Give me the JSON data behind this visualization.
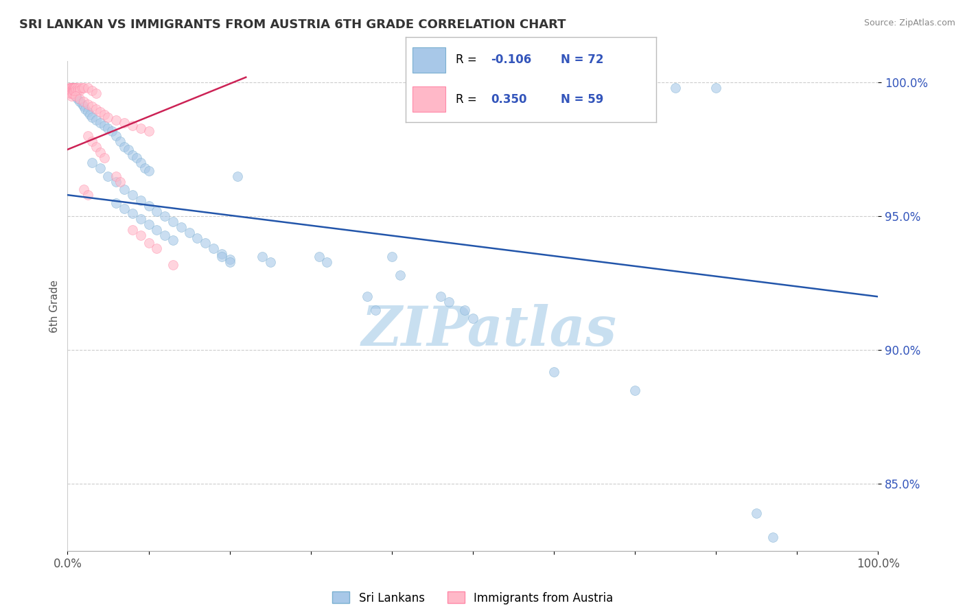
{
  "title": "SRI LANKAN VS IMMIGRANTS FROM AUSTRIA 6TH GRADE CORRELATION CHART",
  "source": "Source: ZipAtlas.com",
  "ylabel": "6th Grade",
  "watermark": "ZIPatlas",
  "blue_r": -0.106,
  "blue_n": 72,
  "pink_r": 0.35,
  "pink_n": 59,
  "xlim": [
    0.0,
    1.0
  ],
  "ylim": [
    0.825,
    1.008
  ],
  "yticks": [
    0.85,
    0.9,
    0.95,
    1.0
  ],
  "ytick_labels": [
    "85.0%",
    "90.0%",
    "95.0%",
    "100.0%"
  ],
  "blue_scatter": [
    [
      0.005,
      0.998
    ],
    [
      0.006,
      0.997
    ],
    [
      0.007,
      0.996
    ],
    [
      0.008,
      0.998
    ],
    [
      0.01,
      0.995
    ],
    [
      0.012,
      0.994
    ],
    [
      0.015,
      0.993
    ],
    [
      0.018,
      0.992
    ],
    [
      0.02,
      0.991
    ],
    [
      0.022,
      0.99
    ],
    [
      0.025,
      0.989
    ],
    [
      0.028,
      0.988
    ],
    [
      0.03,
      0.987
    ],
    [
      0.035,
      0.986
    ],
    [
      0.04,
      0.985
    ],
    [
      0.045,
      0.984
    ],
    [
      0.05,
      0.983
    ],
    [
      0.055,
      0.982
    ],
    [
      0.06,
      0.98
    ],
    [
      0.065,
      0.978
    ],
    [
      0.07,
      0.976
    ],
    [
      0.075,
      0.975
    ],
    [
      0.08,
      0.973
    ],
    [
      0.085,
      0.972
    ],
    [
      0.09,
      0.97
    ],
    [
      0.095,
      0.968
    ],
    [
      0.1,
      0.967
    ],
    [
      0.03,
      0.97
    ],
    [
      0.04,
      0.968
    ],
    [
      0.05,
      0.965
    ],
    [
      0.06,
      0.963
    ],
    [
      0.07,
      0.96
    ],
    [
      0.08,
      0.958
    ],
    [
      0.09,
      0.956
    ],
    [
      0.1,
      0.954
    ],
    [
      0.11,
      0.952
    ],
    [
      0.12,
      0.95
    ],
    [
      0.13,
      0.948
    ],
    [
      0.14,
      0.946
    ],
    [
      0.15,
      0.944
    ],
    [
      0.16,
      0.942
    ],
    [
      0.17,
      0.94
    ],
    [
      0.18,
      0.938
    ],
    [
      0.19,
      0.936
    ],
    [
      0.2,
      0.934
    ],
    [
      0.06,
      0.955
    ],
    [
      0.07,
      0.953
    ],
    [
      0.08,
      0.951
    ],
    [
      0.09,
      0.949
    ],
    [
      0.1,
      0.947
    ],
    [
      0.11,
      0.945
    ],
    [
      0.12,
      0.943
    ],
    [
      0.13,
      0.941
    ],
    [
      0.21,
      0.965
    ],
    [
      0.19,
      0.935
    ],
    [
      0.2,
      0.933
    ],
    [
      0.24,
      0.935
    ],
    [
      0.25,
      0.933
    ],
    [
      0.31,
      0.935
    ],
    [
      0.32,
      0.933
    ],
    [
      0.37,
      0.92
    ],
    [
      0.38,
      0.915
    ],
    [
      0.4,
      0.935
    ],
    [
      0.41,
      0.928
    ],
    [
      0.46,
      0.92
    ],
    [
      0.47,
      0.918
    ],
    [
      0.49,
      0.915
    ],
    [
      0.5,
      0.912
    ],
    [
      0.6,
      0.892
    ],
    [
      0.7,
      0.885
    ],
    [
      0.75,
      0.998
    ],
    [
      0.8,
      0.998
    ],
    [
      0.85,
      0.839
    ],
    [
      0.87,
      0.83
    ]
  ],
  "pink_scatter": [
    [
      0.002,
      0.998
    ],
    [
      0.002,
      0.997
    ],
    [
      0.003,
      0.998
    ],
    [
      0.003,
      0.997
    ],
    [
      0.003,
      0.996
    ],
    [
      0.004,
      0.998
    ],
    [
      0.004,
      0.997
    ],
    [
      0.004,
      0.996
    ],
    [
      0.005,
      0.998
    ],
    [
      0.005,
      0.997
    ],
    [
      0.005,
      0.996
    ],
    [
      0.005,
      0.995
    ],
    [
      0.006,
      0.998
    ],
    [
      0.006,
      0.997
    ],
    [
      0.006,
      0.996
    ],
    [
      0.007,
      0.998
    ],
    [
      0.007,
      0.997
    ],
    [
      0.008,
      0.998
    ],
    [
      0.008,
      0.997
    ],
    [
      0.009,
      0.998
    ],
    [
      0.01,
      0.998
    ],
    [
      0.01,
      0.997
    ],
    [
      0.012,
      0.998
    ],
    [
      0.012,
      0.997
    ],
    [
      0.015,
      0.998
    ],
    [
      0.015,
      0.997
    ],
    [
      0.018,
      0.998
    ],
    [
      0.02,
      0.998
    ],
    [
      0.025,
      0.998
    ],
    [
      0.03,
      0.997
    ],
    [
      0.035,
      0.996
    ],
    [
      0.01,
      0.995
    ],
    [
      0.015,
      0.994
    ],
    [
      0.02,
      0.993
    ],
    [
      0.025,
      0.992
    ],
    [
      0.03,
      0.991
    ],
    [
      0.035,
      0.99
    ],
    [
      0.04,
      0.989
    ],
    [
      0.045,
      0.988
    ],
    [
      0.05,
      0.987
    ],
    [
      0.06,
      0.986
    ],
    [
      0.07,
      0.985
    ],
    [
      0.08,
      0.984
    ],
    [
      0.09,
      0.983
    ],
    [
      0.1,
      0.982
    ],
    [
      0.025,
      0.98
    ],
    [
      0.03,
      0.978
    ],
    [
      0.035,
      0.976
    ],
    [
      0.04,
      0.974
    ],
    [
      0.045,
      0.972
    ],
    [
      0.06,
      0.965
    ],
    [
      0.065,
      0.963
    ],
    [
      0.02,
      0.96
    ],
    [
      0.025,
      0.958
    ],
    [
      0.08,
      0.945
    ],
    [
      0.09,
      0.943
    ],
    [
      0.1,
      0.94
    ],
    [
      0.11,
      0.938
    ],
    [
      0.13,
      0.932
    ]
  ],
  "blue_line_x": [
    0.0,
    1.0
  ],
  "blue_line_y": [
    0.958,
    0.92
  ],
  "pink_line_x": [
    0.0,
    0.22
  ],
  "pink_line_y": [
    0.975,
    1.002
  ],
  "blue_color": "#a8c8e8",
  "pink_color": "#ffb8c8",
  "blue_edge_color": "#7aafd0",
  "pink_edge_color": "#ff88a8",
  "blue_line_color": "#2255aa",
  "pink_line_color": "#cc2255",
  "background_color": "#ffffff",
  "grid_color": "#cccccc",
  "title_color": "#333333",
  "axis_label_color": "#555555",
  "watermark_color": "#c8dff0",
  "legend_color": "#3355bb"
}
